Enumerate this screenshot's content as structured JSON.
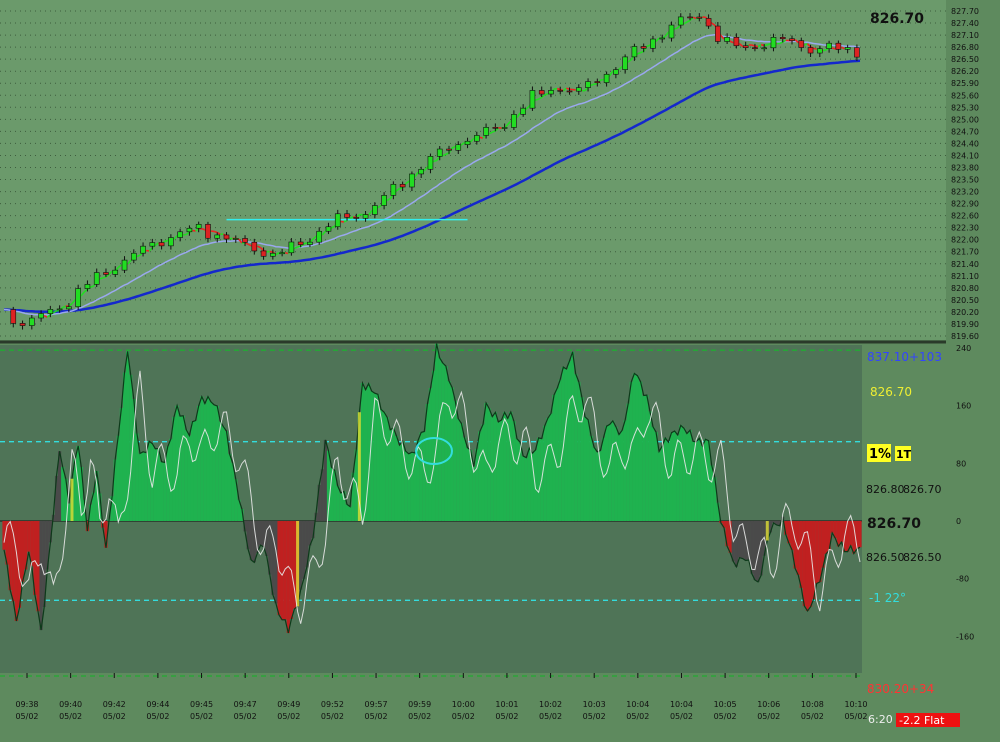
{
  "chart_data": [
    {
      "type": "candlestick",
      "title": "",
      "last_price_label": "826.70",
      "y_ticks": [
        "827.70",
        "827.40",
        "827.10",
        "826.80",
        "826.50",
        "826.20",
        "825.90",
        "825.60",
        "825.30",
        "825.00",
        "824.70",
        "824.40",
        "824.10",
        "823.80",
        "823.50",
        "823.20",
        "822.90",
        "822.60",
        "822.30",
        "822.00",
        "821.70",
        "821.40",
        "821.10",
        "820.80",
        "820.50",
        "820.20",
        "819.90",
        "819.60"
      ],
      "ylim": [
        819.6,
        827.85
      ],
      "anchors": [
        [
          0,
          820.2
        ],
        [
          6,
          819.9
        ],
        [
          12,
          820.1
        ],
        [
          20,
          820.4
        ],
        [
          27,
          820.9
        ],
        [
          35,
          821.3
        ],
        [
          48,
          821.9
        ],
        [
          62,
          822.3
        ],
        [
          70,
          822.1
        ],
        [
          80,
          821.8
        ],
        [
          88,
          821.6
        ],
        [
          98,
          822.0
        ],
        [
          108,
          822.5
        ],
        [
          118,
          822.7
        ],
        [
          128,
          823.4
        ],
        [
          138,
          824.0
        ],
        [
          146,
          824.4
        ],
        [
          154,
          824.6
        ],
        [
          162,
          824.9
        ],
        [
          170,
          825.5
        ],
        [
          178,
          825.8
        ],
        [
          186,
          825.7
        ],
        [
          196,
          826.2
        ],
        [
          206,
          826.8
        ],
        [
          214,
          827.2
        ],
        [
          220,
          827.5
        ],
        [
          226,
          827.6
        ],
        [
          232,
          826.9
        ],
        [
          240,
          826.8
        ],
        [
          248,
          826.9
        ],
        [
          254,
          827.0
        ],
        [
          262,
          826.7
        ],
        [
          270,
          826.8
        ],
        [
          277,
          826.7
        ]
      ],
      "ma_fast_range": [
        13,
        274
      ],
      "ma_mid_range": [
        0,
        277
      ],
      "ma_slow_range": [
        0,
        277
      ],
      "trend_line_price": 822.5,
      "trend_line_bars": [
        72,
        150
      ],
      "series": [
        {
          "name": "Fast MA",
          "color": "#ee2222"
        },
        {
          "name": "Medium MA",
          "color": "#9aa8ee"
        },
        {
          "name": "Slow MA",
          "color": "#1428cc"
        }
      ]
    },
    {
      "type": "area",
      "title": "",
      "y_ticks": [
        "240",
        "160",
        "80",
        "0",
        "-80",
        "-160"
      ],
      "ylim": [
        -240,
        240
      ],
      "levels": [
        237,
        110,
        0,
        -110,
        -215
      ],
      "osc_anchors": [
        [
          0,
          -40
        ],
        [
          4,
          -140
        ],
        [
          8,
          -40
        ],
        [
          12,
          -155
        ],
        [
          15,
          -30
        ],
        [
          18,
          100
        ],
        [
          21,
          30
        ],
        [
          24,
          110
        ],
        [
          27,
          -10
        ],
        [
          30,
          70
        ],
        [
          33,
          -40
        ],
        [
          36,
          80
        ],
        [
          40,
          240
        ],
        [
          44,
          90
        ],
        [
          48,
          110
        ],
        [
          52,
          80
        ],
        [
          56,
          160
        ],
        [
          60,
          120
        ],
        [
          64,
          170
        ],
        [
          68,
          165
        ],
        [
          72,
          120
        ],
        [
          76,
          35
        ],
        [
          80,
          -60
        ],
        [
          84,
          -30
        ],
        [
          88,
          -120
        ],
        [
          92,
          -150
        ],
        [
          96,
          -100
        ],
        [
          100,
          -20
        ],
        [
          104,
          110
        ],
        [
          108,
          50
        ],
        [
          112,
          20
        ],
        [
          116,
          190
        ],
        [
          120,
          180
        ],
        [
          124,
          140
        ],
        [
          128,
          110
        ],
        [
          132,
          90
        ],
        [
          136,
          130
        ],
        [
          140,
          240
        ],
        [
          144,
          200
        ],
        [
          148,
          130
        ],
        [
          152,
          80
        ],
        [
          156,
          160
        ],
        [
          160,
          140
        ],
        [
          164,
          150
        ],
        [
          168,
          90
        ],
        [
          172,
          100
        ],
        [
          176,
          140
        ],
        [
          180,
          200
        ],
        [
          184,
          230
        ],
        [
          188,
          150
        ],
        [
          192,
          90
        ],
        [
          196,
          140
        ],
        [
          200,
          120
        ],
        [
          204,
          210
        ],
        [
          208,
          170
        ],
        [
          212,
          100
        ],
        [
          216,
          120
        ],
        [
          220,
          130
        ],
        [
          224,
          110
        ],
        [
          228,
          110
        ],
        [
          232,
          0
        ],
        [
          236,
          -60
        ],
        [
          240,
          -50
        ],
        [
          244,
          -90
        ],
        [
          248,
          -10
        ],
        [
          252,
          0
        ],
        [
          256,
          -60
        ],
        [
          260,
          -130
        ],
        [
          264,
          -80
        ],
        [
          268,
          -20
        ],
        [
          272,
          -40
        ]
      ],
      "labels": {
        "top": "837.10+103",
        "price1": "826.70",
        "pct": "1%",
        "ticks": "1T",
        "pair1a": "826.80",
        "pair1b": "826.70",
        "mid_big": "826.70",
        "pair2a": "826.50",
        "pair2b": "826.50",
        "cyan": "-1  22°",
        "bottom": "830.20+34"
      },
      "colors": {
        "green_area": "#1fb24f",
        "red_area": "#c02020",
        "gray_area": "#4a4a4a",
        "yellow_mark": "#dddd33",
        "signal_line": "#e8e8e8",
        "cyan_level": "#33dddd",
        "top_label": "#3344ff",
        "bottom_label": "#ff3333"
      }
    }
  ],
  "x_axis": [
    {
      "time": "09:38",
      "date": "05/02"
    },
    {
      "time": "09:40",
      "date": "05/02"
    },
    {
      "time": "09:42",
      "date": "05/02"
    },
    {
      "time": "09:44",
      "date": "05/02"
    },
    {
      "time": "09:45",
      "date": "05/02"
    },
    {
      "time": "09:47",
      "date": "05/02"
    },
    {
      "time": "09:49",
      "date": "05/02"
    },
    {
      "time": "09:52",
      "date": "05/02"
    },
    {
      "time": "09:57",
      "date": "05/02"
    },
    {
      "time": "09:59",
      "date": "05/02"
    },
    {
      "time": "10:00",
      "date": "05/02"
    },
    {
      "time": "10:01",
      "date": "05/02"
    },
    {
      "time": "10:02",
      "date": "05/02"
    },
    {
      "time": "10:03",
      "date": "05/02"
    },
    {
      "time": "10:04",
      "date": "05/02"
    },
    {
      "time": "10:04",
      "date": "05/02"
    },
    {
      "time": "10:05",
      "date": "05/02"
    },
    {
      "time": "10:06",
      "date": "05/02"
    },
    {
      "time": "10:08",
      "date": "05/02"
    },
    {
      "time": "10:10",
      "date": "05/02"
    }
  ],
  "status": {
    "timer": "6:20",
    "position": "-2.2 Flat"
  }
}
